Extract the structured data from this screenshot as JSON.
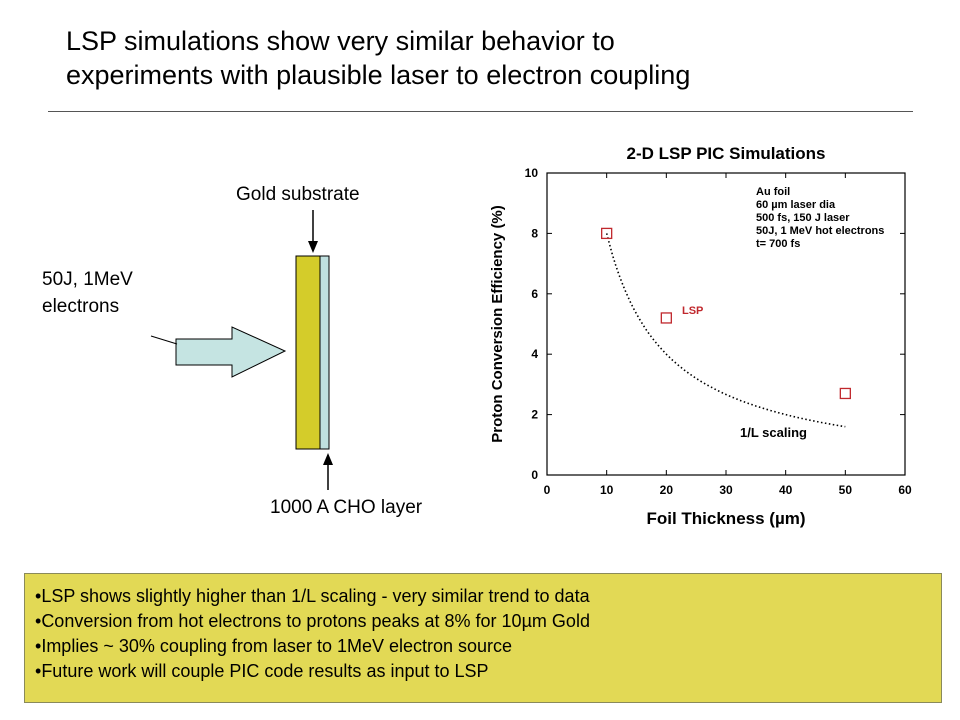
{
  "slide": {
    "title_lines": [
      "LSP simulations show very similar behavior to",
      "experiments with plausible laser to electron coupling"
    ]
  },
  "diagram": {
    "gold_substrate_label": "Gold substrate",
    "electrons_label_lines": [
      "50J, 1MeV",
      "electrons"
    ],
    "cho_layer_label": "1000 A CHO layer",
    "colors": {
      "gold": "#d4cc2a",
      "cho": "#bfe0df",
      "arrow": "#c5e4e2"
    }
  },
  "chart_data": {
    "type": "scatter",
    "title": "2-D LSP PIC Simulations",
    "xlabel": "Foil Thickness (µm)",
    "ylabel": "Proton Conversion Efficiency (%)",
    "xlim": [
      0,
      60
    ],
    "ylim": [
      0,
      10
    ],
    "xticks": [
      0,
      10,
      20,
      30,
      40,
      50,
      60
    ],
    "yticks": [
      0,
      2,
      4,
      6,
      8,
      10
    ],
    "grid": false,
    "legend_box_lines": [
      "Au foil",
      "60 µm laser dia",
      "500 fs, 150 J laser",
      "50J, 1 MeV hot electrons",
      "t= 700 fs"
    ],
    "series": [
      {
        "name": "LSP",
        "marker": "open-square",
        "color": "#c0282d",
        "points": [
          {
            "x": 10,
            "y": 8.0
          },
          {
            "x": 20,
            "y": 5.2
          },
          {
            "x": 50,
            "y": 2.7
          }
        ]
      },
      {
        "name": "1/L scaling",
        "style": "dotted-line",
        "color": "#000000",
        "function": "8 * 10 / x",
        "x_range": [
          10,
          50
        ]
      }
    ],
    "annotations": [
      "LSP",
      "1/L scaling"
    ]
  },
  "notes": {
    "bullets": [
      "LSP shows slightly higher than 1/L scaling - very similar trend  to data",
      "Conversion  from hot electrons to protons peaks at 8% for 10µm Gold",
      "Implies ~ 30%  coupling from laser to 1MeV electron source",
      "Future work will couple PIC code results as input to LSP"
    ]
  }
}
